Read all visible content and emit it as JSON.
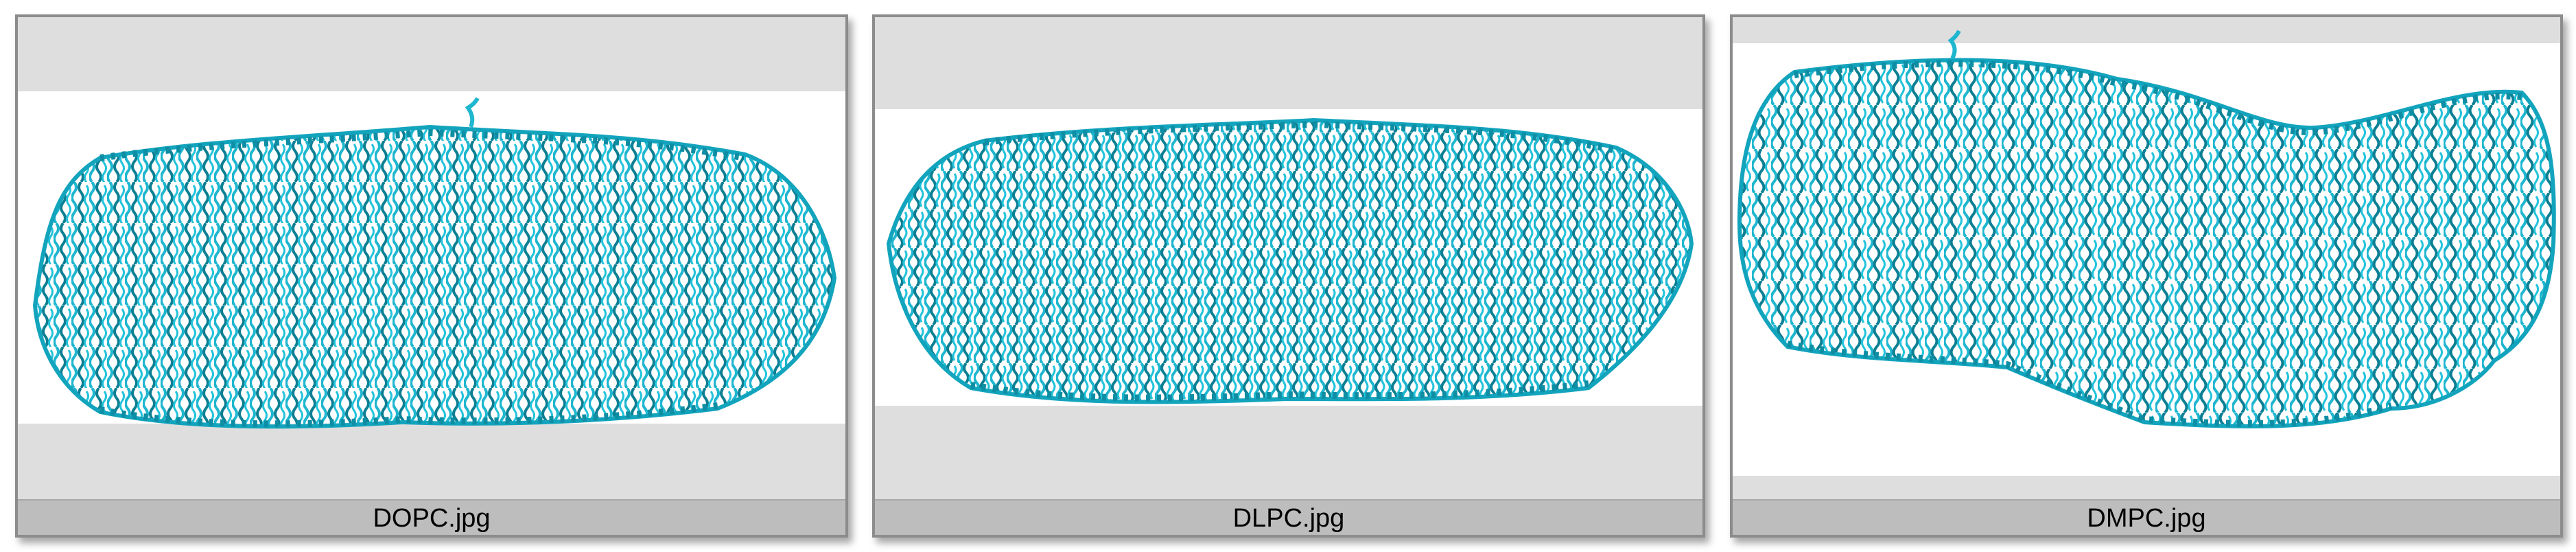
{
  "gallery": {
    "items": [
      {
        "label": "DOPC.jpg"
      },
      {
        "label": "DLPC.jpg"
      },
      {
        "label": "DMPC.jpg"
      }
    ]
  },
  "colors": {
    "frame_background": "#dedede",
    "band": "#ffffff",
    "molecule": "#1fb6cf",
    "molecule_dark": "#0d7f93",
    "caption_bar": "#bdbdbd"
  },
  "icons": [
    "membrane-render-image"
  ]
}
